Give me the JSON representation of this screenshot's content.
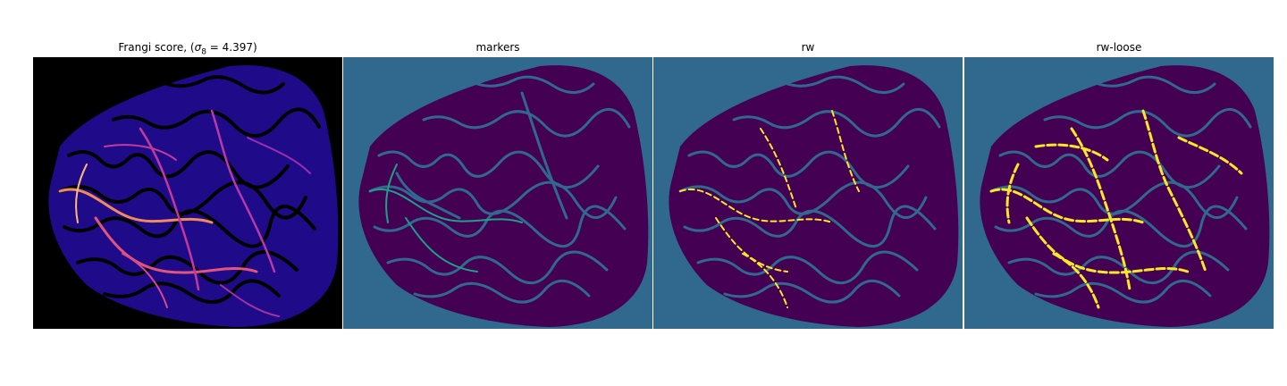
{
  "figure": {
    "panels": [
      {
        "id": "frangi",
        "title_prefix": "Frangi score, (",
        "title_sigma": "σ",
        "title_sub": "8",
        "title_suffix": " = 4.397)",
        "colormap": "magma",
        "background": "#000000",
        "region_color": "#1f0a8a"
      },
      {
        "id": "markers",
        "title": "markers",
        "colormap": "viridis",
        "background": "#30688e",
        "region_color": "#440154"
      },
      {
        "id": "rw",
        "title": "rw",
        "colormap": "viridis",
        "background": "#30688e",
        "region_color": "#440154",
        "highlight_color": "#fde725"
      },
      {
        "id": "rw-loose",
        "title": "rw-loose",
        "colormap": "viridis",
        "background": "#30688e",
        "region_color": "#440154",
        "highlight_color": "#fde725"
      }
    ]
  }
}
